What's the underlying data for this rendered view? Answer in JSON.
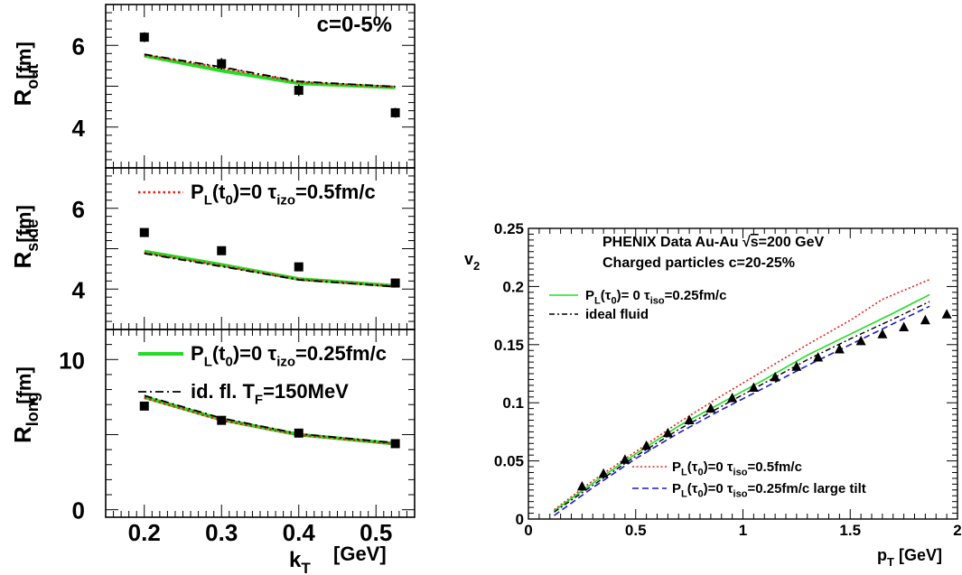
{
  "chart_data": [
    {
      "type": "line",
      "panel": "left-top",
      "ylabel": "R",
      "ylabel_sub": "out",
      "yunit": "[fm]",
      "ylim": [
        3.0,
        7.0
      ],
      "xlim": [
        0.15,
        0.55
      ],
      "yticks": [
        "4",
        "6"
      ],
      "annotation": "c=0-5%",
      "series": [
        {
          "style": "green-solid",
          "x": [
            0.2,
            0.3,
            0.4,
            0.525
          ],
          "y": [
            5.75,
            5.38,
            5.07,
            4.97
          ]
        },
        {
          "style": "red-dotted",
          "x": [
            0.2,
            0.3,
            0.4,
            0.525
          ],
          "y": [
            5.76,
            5.45,
            5.1,
            4.98
          ]
        },
        {
          "style": "black-dashdot",
          "x": [
            0.2,
            0.3,
            0.4,
            0.525
          ],
          "y": [
            5.78,
            5.47,
            5.12,
            4.99
          ]
        }
      ],
      "points": {
        "x": [
          0.2,
          0.3,
          0.4,
          0.525
        ],
        "y": [
          6.2,
          5.55,
          4.9,
          4.35
        ],
        "err": [
          0.12,
          0.14,
          0.14,
          0.12
        ]
      }
    },
    {
      "type": "line",
      "panel": "left-middle",
      "ylabel": "R",
      "ylabel_sub": "side",
      "yunit": "[fm]",
      "ylim": [
        3.0,
        7.0
      ],
      "xlim": [
        0.15,
        0.55
      ],
      "yticks": [
        "4",
        "6"
      ],
      "legend": [
        {
          "style": "red-dotted",
          "text_main": "P",
          "text_sub1": "L",
          "text_mid": "(t",
          "text_sub2": "0",
          "text_after": ")=0  τ",
          "text_sub3": "izo",
          "text_end": "=0.5fm/c"
        }
      ],
      "series": [
        {
          "style": "green-solid",
          "x": [
            0.2,
            0.3,
            0.4,
            0.525
          ],
          "y": [
            4.93,
            4.6,
            4.25,
            4.08
          ]
        },
        {
          "style": "red-dotted",
          "x": [
            0.2,
            0.3,
            0.4,
            0.525
          ],
          "y": [
            4.9,
            4.58,
            4.24,
            4.07
          ]
        },
        {
          "style": "black-dashdot",
          "x": [
            0.2,
            0.3,
            0.4,
            0.525
          ],
          "y": [
            4.88,
            4.56,
            4.23,
            4.06
          ]
        }
      ],
      "points": {
        "x": [
          0.2,
          0.3,
          0.4,
          0.525
        ],
        "y": [
          5.4,
          4.95,
          4.55,
          4.15
        ],
        "err": [
          0.05,
          0.05,
          0.05,
          0.05
        ]
      }
    },
    {
      "type": "line",
      "panel": "left-bottom",
      "ylabel": "R",
      "ylabel_sub": "long",
      "yunit": "[fm]",
      "ylim": [
        -0.5,
        12.0
      ],
      "xlim": [
        0.15,
        0.55
      ],
      "yticks": [
        "0",
        "10"
      ],
      "xticks": [
        "0.2",
        "0.3",
        "0.4",
        "0.5"
      ],
      "xlabel": "k",
      "xlabel_sub": "T",
      "xunit": "[GeV]",
      "legend": [
        {
          "style": "green-solid",
          "text_main": "P",
          "text_sub1": "L",
          "text_mid": "(t",
          "text_sub2": "0",
          "text_after": ")=0  τ",
          "text_sub3": "izo",
          "text_end": "=0.25fm/c"
        },
        {
          "style": "black-dashdot",
          "text_main": "id. fl.  T",
          "text_sub1": "F",
          "text_end": "=150MeV"
        }
      ],
      "series": [
        {
          "style": "green-solid",
          "x": [
            0.2,
            0.3,
            0.4,
            0.525
          ],
          "y": [
            7.5,
            6.0,
            5.0,
            4.4
          ]
        },
        {
          "style": "red-dotted",
          "x": [
            0.2,
            0.3,
            0.4,
            0.525
          ],
          "y": [
            7.45,
            5.95,
            4.98,
            4.38
          ]
        },
        {
          "style": "black-dashdot",
          "x": [
            0.2,
            0.3,
            0.4,
            0.525
          ],
          "y": [
            7.6,
            6.1,
            5.05,
            4.45
          ]
        }
      ],
      "points": {
        "x": [
          0.2,
          0.3,
          0.4,
          0.525
        ],
        "y": [
          6.9,
          5.95,
          5.1,
          4.4
        ],
        "err": [
          0.1,
          0.1,
          0.1,
          0.1
        ]
      }
    },
    {
      "type": "line",
      "panel": "right",
      "ylabel": "v",
      "ylabel_sub": "2",
      "xlabel": "p",
      "xlabel_sub": "T",
      "xunit": "[GeV]",
      "xlim": [
        0,
        2
      ],
      "ylim": [
        0,
        0.25
      ],
      "xticks": [
        "0",
        "0.5",
        "1",
        "1.5",
        "2"
      ],
      "yticks": [
        "0",
        "0.05",
        "0.1",
        "0.15",
        "0.2",
        "0.25"
      ],
      "title_line1_a": "PHENIX Data Au-Au ",
      "title_line1_sqrt": "√",
      "title_line1_s": "s",
      "title_line1_b": "=200 GeV",
      "title_line2": "Charged particles   c=20-25%",
      "legend": [
        {
          "style": "green-solid-thin",
          "text_main": "P",
          "text_sub1": "L",
          "text_mid": "(τ",
          "text_sub2": "0",
          "text_after": ")= 0  τ",
          "text_sub3": "iso",
          "text_end": "=0.25fm/c"
        },
        {
          "style": "black-dashdot-thin",
          "text_main": "ideal fluid"
        },
        {
          "style": "red-dotted-thin",
          "text_main": "P",
          "text_sub1": "L",
          "text_mid": "(τ",
          "text_sub2": "0",
          "text_after": ")=0  τ",
          "text_sub3": "iso",
          "text_end": "=0.5fm/c"
        },
        {
          "style": "blue-dashed",
          "text_main": "P",
          "text_sub1": "L",
          "text_mid": "(τ",
          "text_sub2": "0",
          "text_after": ")=0  τ",
          "text_sub3": "iso",
          "text_end": "=0.25fm/c  large tilt"
        }
      ],
      "series": [
        {
          "style": "red-dotted-thin",
          "x": [
            0.12,
            0.3,
            0.5,
            0.7,
            0.9,
            1.1,
            1.3,
            1.5,
            1.65,
            1.87
          ],
          "y": [
            0.008,
            0.033,
            0.058,
            0.083,
            0.106,
            0.128,
            0.15,
            0.171,
            0.189,
            0.206
          ]
        },
        {
          "style": "green-solid-thin",
          "x": [
            0.12,
            0.3,
            0.5,
            0.7,
            0.9,
            1.1,
            1.3,
            1.5,
            1.7,
            1.87
          ],
          "y": [
            0.007,
            0.031,
            0.056,
            0.08,
            0.1,
            0.12,
            0.141,
            0.159,
            0.177,
            0.193
          ]
        },
        {
          "style": "black-dashdot-thin",
          "x": [
            0.12,
            0.3,
            0.5,
            0.7,
            0.9,
            1.1,
            1.3,
            1.5,
            1.7,
            1.87
          ],
          "y": [
            0.006,
            0.029,
            0.054,
            0.077,
            0.097,
            0.117,
            0.137,
            0.155,
            0.172,
            0.187
          ]
        },
        {
          "style": "blue-dashed",
          "x": [
            0.12,
            0.3,
            0.5,
            0.7,
            0.9,
            1.1,
            1.3,
            1.5,
            1.7,
            1.87
          ],
          "y": [
            0.003,
            0.027,
            0.052,
            0.074,
            0.094,
            0.113,
            0.132,
            0.15,
            0.168,
            0.183
          ]
        }
      ],
      "points": {
        "marker": "triangle",
        "x": [
          0.25,
          0.35,
          0.45,
          0.55,
          0.65,
          0.75,
          0.85,
          0.95,
          1.05,
          1.15,
          1.25,
          1.35,
          1.45,
          1.55,
          1.65,
          1.75,
          1.85,
          1.95
        ],
        "y": [
          0.028,
          0.039,
          0.051,
          0.063,
          0.074,
          0.085,
          0.095,
          0.104,
          0.113,
          0.122,
          0.131,
          0.139,
          0.146,
          0.153,
          0.159,
          0.165,
          0.171,
          0.176
        ]
      }
    }
  ],
  "colors": {
    "green": "#22dd22",
    "red": "#e8201a",
    "blue": "#1a1acc",
    "black": "#000000"
  }
}
